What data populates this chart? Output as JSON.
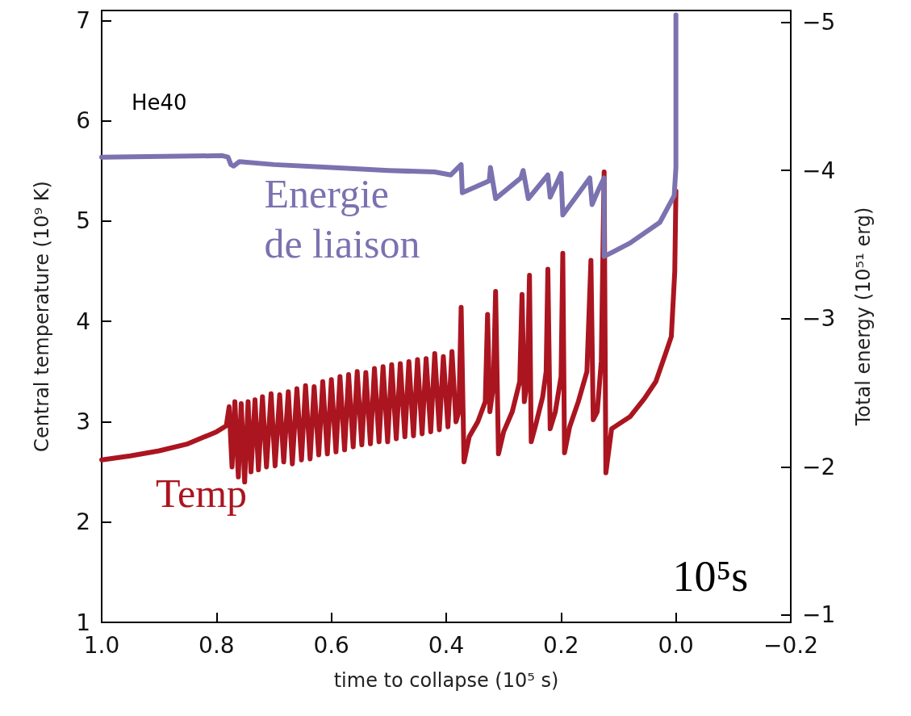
{
  "chart_data": {
    "type": "line",
    "xlabel": "time to collapse (10⁵ s)",
    "ylabel": "Central temperature (10⁹ K)",
    "y2label": "Total energy (10⁵¹ erg)",
    "annotations": [
      "He40",
      "10⁵s"
    ],
    "xlim": [
      1.0,
      -0.2
    ],
    "xticks": [
      {
        "value": 1.0,
        "label": "1.0"
      },
      {
        "value": 0.8,
        "label": "0.8"
      },
      {
        "value": 0.6,
        "label": "0.6"
      },
      {
        "value": 0.4,
        "label": "0.4"
      },
      {
        "value": 0.2,
        "label": "0.2"
      },
      {
        "value": 0.0,
        "label": "0.0"
      },
      {
        "value": -0.2,
        "label": "−0.2"
      }
    ],
    "ylim": [
      1,
      7.1
    ],
    "yticks": [
      1,
      2,
      3,
      4,
      5,
      6,
      7
    ],
    "y2lim": [
      -0.95,
      -5.08
    ],
    "y2ticks": [
      {
        "value": -1,
        "label": "−1"
      },
      {
        "value": -2,
        "label": "−2"
      },
      {
        "value": -3,
        "label": "−3"
      },
      {
        "value": -4,
        "label": "−4"
      },
      {
        "value": -5,
        "label": "−5"
      }
    ],
    "grid": false,
    "legend": false,
    "marker": "none",
    "line_style": "solid",
    "series": [
      {
        "name": "Temp",
        "color": "#ab1520",
        "x": [
          1.0,
          0.95,
          0.9,
          0.85,
          0.8,
          0.783,
          0.778,
          0.773,
          0.768,
          0.762,
          0.757,
          0.751,
          0.745,
          0.74,
          0.733,
          0.727,
          0.72,
          0.713,
          0.705,
          0.698,
          0.69,
          0.683,
          0.675,
          0.668,
          0.66,
          0.652,
          0.645,
          0.637,
          0.63,
          0.622,
          0.615,
          0.607,
          0.6,
          0.592,
          0.585,
          0.577,
          0.57,
          0.562,
          0.555,
          0.547,
          0.54,
          0.532,
          0.525,
          0.517,
          0.51,
          0.502,
          0.495,
          0.487,
          0.48,
          0.472,
          0.465,
          0.457,
          0.45,
          0.442,
          0.435,
          0.427,
          0.42,
          0.412,
          0.405,
          0.397,
          0.39,
          0.383,
          0.378,
          0.374,
          0.369,
          0.36,
          0.345,
          0.332,
          0.328,
          0.324,
          0.318,
          0.314,
          0.309,
          0.3,
          0.285,
          0.272,
          0.268,
          0.264,
          0.259,
          0.255,
          0.252,
          0.245,
          0.232,
          0.226,
          0.223,
          0.219,
          0.21,
          0.2,
          0.197,
          0.194,
          0.185,
          0.17,
          0.155,
          0.148,
          0.144,
          0.137,
          0.13,
          0.125,
          0.122,
          0.112,
          0.08,
          0.055,
          0.035,
          0.018,
          0.008,
          0.002,
          0.0
        ],
        "values": [
          2.62,
          2.66,
          2.71,
          2.78,
          2.9,
          2.96,
          3.15,
          2.55,
          3.2,
          2.45,
          3.18,
          2.4,
          3.2,
          2.5,
          3.22,
          2.52,
          3.25,
          2.55,
          3.28,
          2.56,
          3.27,
          2.6,
          3.3,
          2.58,
          3.33,
          2.62,
          3.36,
          2.63,
          3.35,
          2.67,
          3.4,
          2.68,
          3.42,
          2.7,
          3.45,
          2.72,
          3.47,
          2.75,
          3.5,
          2.77,
          3.49,
          2.78,
          3.53,
          2.8,
          3.55,
          2.8,
          3.57,
          2.83,
          3.58,
          2.85,
          3.6,
          2.86,
          3.62,
          2.88,
          3.63,
          2.9,
          3.68,
          2.92,
          3.65,
          2.95,
          3.7,
          3.0,
          3.1,
          4.14,
          2.6,
          2.85,
          3.0,
          3.2,
          4.07,
          3.1,
          3.35,
          4.3,
          2.68,
          2.9,
          3.1,
          3.4,
          4.27,
          3.2,
          3.4,
          4.46,
          2.8,
          2.95,
          3.25,
          3.5,
          4.52,
          2.93,
          3.1,
          3.45,
          4.68,
          2.69,
          2.95,
          3.2,
          3.5,
          4.61,
          3.02,
          3.1,
          3.6,
          5.49,
          2.49,
          2.93,
          3.05,
          3.23,
          3.4,
          3.68,
          3.85,
          4.5,
          5.3
        ]
      },
      {
        "name": "Energie de liaison",
        "color": "#7b72b0",
        "axis": "y2",
        "x": [
          1.0,
          0.79,
          0.78,
          0.775,
          0.77,
          0.76,
          0.7,
          0.6,
          0.5,
          0.42,
          0.392,
          0.374,
          0.372,
          0.325,
          0.323,
          0.314,
          0.27,
          0.266,
          0.257,
          0.223,
          0.219,
          0.2,
          0.197,
          0.15,
          0.146,
          0.135,
          0.125,
          0.125,
          0.08,
          0.028,
          0.003,
          0.0,
          0.0
        ],
        "values": [
          -4.09,
          -4.1,
          -4.09,
          -4.04,
          -4.03,
          -4.06,
          -4.04,
          -4.02,
          -4.0,
          -3.99,
          -3.97,
          -4.04,
          -3.85,
          -3.93,
          -4.02,
          -3.81,
          -3.95,
          -4.0,
          -3.81,
          -3.97,
          -3.82,
          -3.98,
          -3.7,
          -3.95,
          -3.77,
          -3.87,
          -3.95,
          -3.42,
          -3.51,
          -3.65,
          -3.83,
          -4.02,
          -5.05
        ]
      }
    ]
  }
}
